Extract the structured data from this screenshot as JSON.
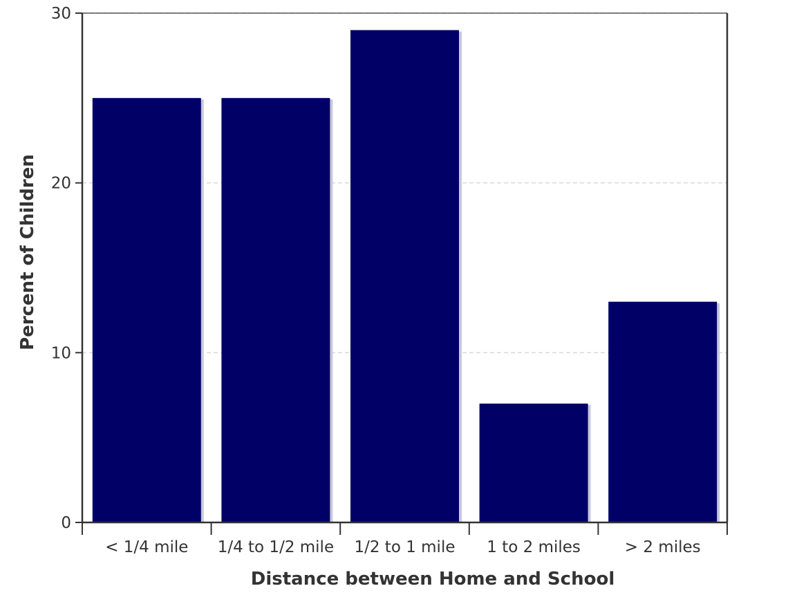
{
  "chart_data": {
    "type": "bar",
    "title": "",
    "xlabel": "Distance between Home and School",
    "ylabel": "Percent of Children",
    "categories": [
      "< 1/4 mile",
      "1/4 to 1/2 mile",
      "1/2 to 1 mile",
      "1 to 2 miles",
      "> 2 miles"
    ],
    "values": [
      25,
      25,
      29,
      7,
      13
    ],
    "ylim": [
      0,
      30
    ],
    "yticks": [
      0,
      10,
      20,
      30
    ],
    "grid": "horizontal-dashed",
    "legend": "none",
    "bar_color": "#000066",
    "bar_shadow_color": "#c8c8dc",
    "grid_color": "#d9d9d9",
    "axis_color": "#333333"
  }
}
